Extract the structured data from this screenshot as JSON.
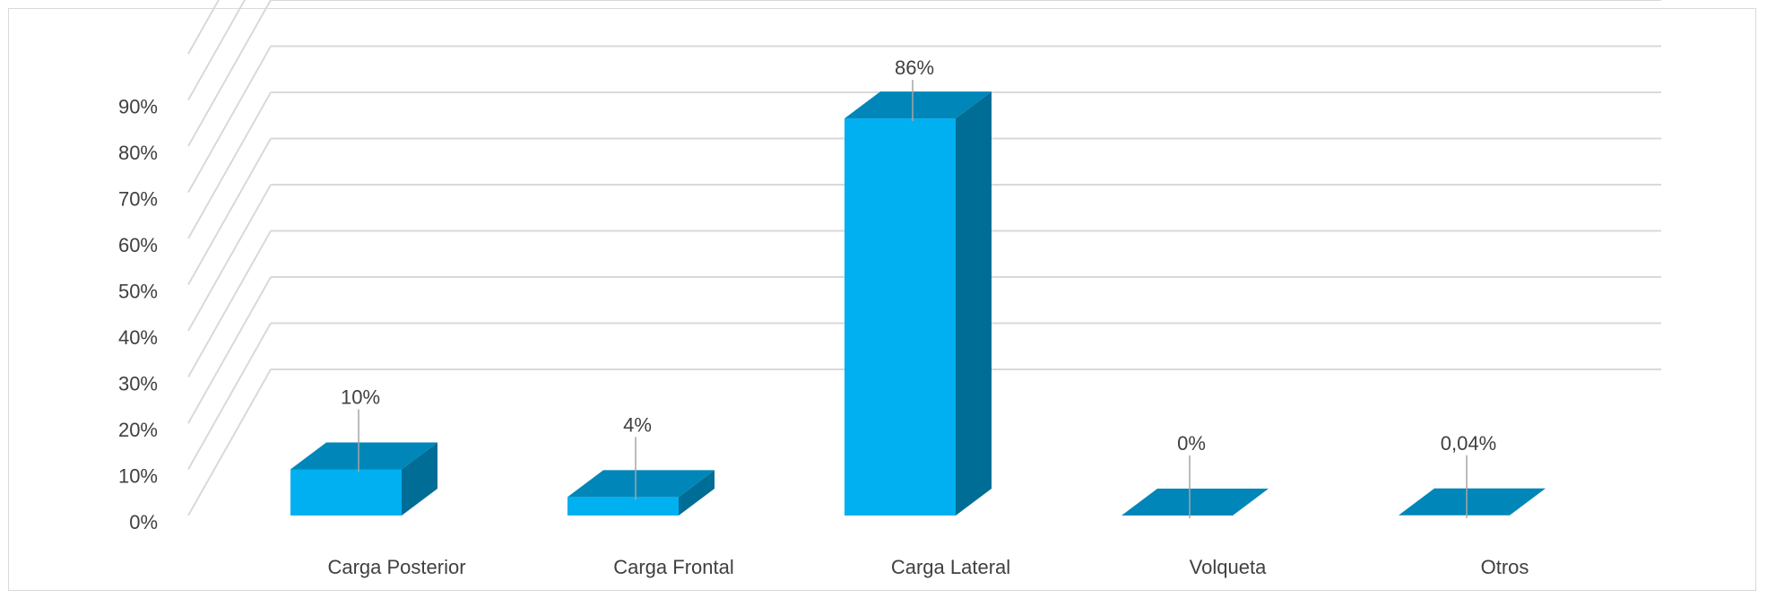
{
  "chart_data": {
    "type": "bar",
    "style": "3d-column",
    "categories": [
      "Carga Posterior",
      "Carga Frontal",
      "Carga Lateral",
      "Volqueta",
      "Otros"
    ],
    "values": [
      10,
      4,
      86,
      0,
      0.04
    ],
    "data_labels": [
      "10%",
      "4%",
      "86%",
      "0%",
      "0,04%"
    ],
    "y_ticks": [
      "0%",
      "10%",
      "20%",
      "30%",
      "40%",
      "50%",
      "60%",
      "70%",
      "80%",
      "90%"
    ],
    "ylim": [
      0,
      100
    ],
    "grid": true,
    "title": "",
    "xlabel": "",
    "ylabel": "",
    "colors": {
      "front": "#00b0f0",
      "top": "#0086b8",
      "side": "#006d96",
      "grid": "#d9d9d9",
      "leader": "#a6a6a6",
      "text": "#404040"
    }
  }
}
